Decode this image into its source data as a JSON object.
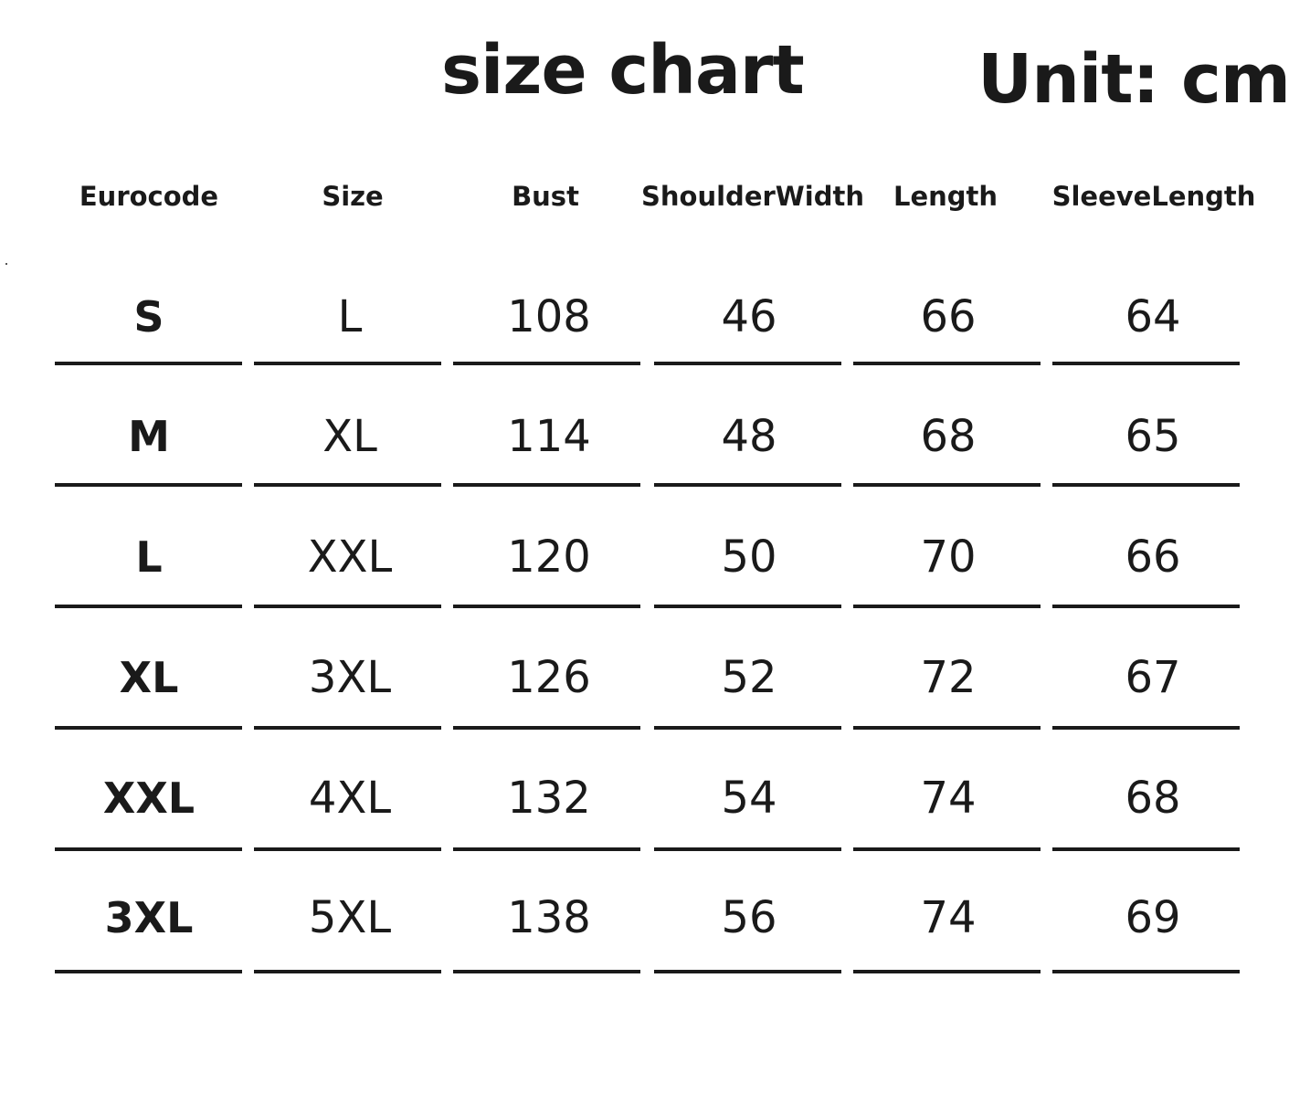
{
  "title": "size chart",
  "unit": "Unit: cm",
  "columns": [
    {
      "line1": "Eurocode",
      "line2": ""
    },
    {
      "line1": "Size",
      "line2": ""
    },
    {
      "line1": "Bust",
      "line2": ""
    },
    {
      "line1": "Shoulder",
      "line2": "Width"
    },
    {
      "line1": "Length",
      "line2": ""
    },
    {
      "line1": "Sleeve",
      "line2": "Length"
    }
  ],
  "rows": [
    [
      "S",
      "L",
      "108",
      "46",
      "66",
      "64"
    ],
    [
      "M",
      "XL",
      "114",
      "48",
      "68",
      "65"
    ],
    [
      "L",
      "XXL",
      "120",
      "50",
      "70",
      "66"
    ],
    [
      "XL",
      "3XL",
      "126",
      "52",
      "72",
      "67"
    ],
    [
      "XXL",
      "4XL",
      "132",
      "54",
      "74",
      "68"
    ],
    [
      "3XL",
      "5XL",
      "138",
      "56",
      "74",
      "69"
    ]
  ]
}
